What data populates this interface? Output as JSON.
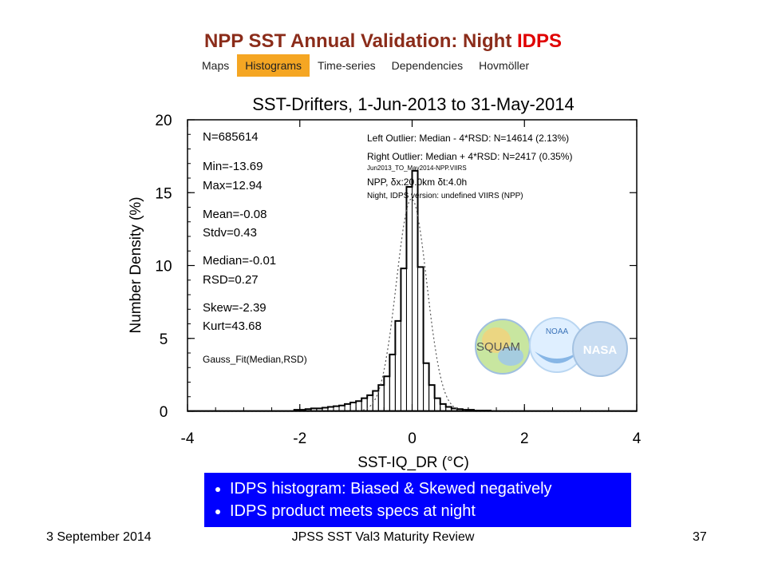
{
  "page": {
    "title_main": "NPP SST Annual Validation: Night ",
    "title_accent": "IDPS"
  },
  "tabs": [
    {
      "label": "Maps",
      "active": false
    },
    {
      "label": "Histograms",
      "active": true
    },
    {
      "label": "Time-series",
      "active": false
    },
    {
      "label": "Dependencies",
      "active": false
    },
    {
      "label": "Hovmöller",
      "active": false
    }
  ],
  "stats": {
    "n": "N=685614",
    "min": "Min=-13.69",
    "max": "Max=12.94",
    "mean": "Mean=-0.08",
    "stdv": "Stdv=0.43",
    "median": "Median=-0.01",
    "rsd": "RSD=0.27",
    "skew": "Skew=-2.39",
    "kurt": "Kurt=43.68",
    "gauss": "Gauss_Fit(Median,RSD)"
  },
  "info": {
    "left_outlier": "Left Outlier: Median - 4*RSD: N=14614 (2.13%)",
    "right_outlier": "Right Outlier: Median + 4*RSD: N=2417 (0.35%)",
    "file": "Jun2013_TO_May2014-NPP.VIIRS",
    "platform": "NPP, δx:20.0km δt:4.0h",
    "version": "Night, IDPS version: undefined VIIRS (NPP)"
  },
  "logo": {
    "squam": "SQUAM",
    "noaa": "NOAA",
    "nasa": "NASA"
  },
  "chart_data": {
    "type": "bar",
    "title": "SST-Drifters, 1-Jun-2013 to 31-May-2014",
    "xlabel": "SST-IQ_DR (°C)",
    "ylabel": "Number Density (%)",
    "xlim": [
      -4,
      4
    ],
    "ylim": [
      0,
      20
    ],
    "x_ticks": [
      "-4",
      "-2",
      "0",
      "2",
      "4"
    ],
    "y_ticks": [
      "0",
      "5",
      "10",
      "15",
      "20"
    ],
    "bin_width": 0.1,
    "bin_centers": [
      -2.05,
      -1.95,
      -1.85,
      -1.75,
      -1.65,
      -1.55,
      -1.45,
      -1.35,
      -1.25,
      -1.15,
      -1.05,
      -0.95,
      -0.85,
      -0.75,
      -0.65,
      -0.55,
      -0.45,
      -0.35,
      -0.25,
      -0.15,
      -0.05,
      0.05,
      0.15,
      0.25,
      0.35,
      0.45,
      0.55,
      0.65,
      0.75,
      0.85,
      0.95,
      1.05,
      1.15,
      1.25,
      1.35
    ],
    "values": [
      0.1,
      0.1,
      0.15,
      0.2,
      0.2,
      0.25,
      0.3,
      0.35,
      0.4,
      0.5,
      0.6,
      0.7,
      0.9,
      1.1,
      1.4,
      1.8,
      2.4,
      3.9,
      6.2,
      9.8,
      15.4,
      16.5,
      9.9,
      3.3,
      1.8,
      0.9,
      0.5,
      0.3,
      0.2,
      0.15,
      0.1,
      0.1,
      0.05,
      0.05,
      0.05
    ],
    "gauss_fit": {
      "median": -0.01,
      "rsd": 0.27,
      "peak": 14.6
    },
    "grid": false
  },
  "bullets": [
    "IDPS histogram: Biased & Skewed negatively",
    "IDPS product meets specs at night"
  ],
  "footer": {
    "date": "3 September 2014",
    "center": "JPSS SST Val3 Maturity Review",
    "page": "37"
  }
}
